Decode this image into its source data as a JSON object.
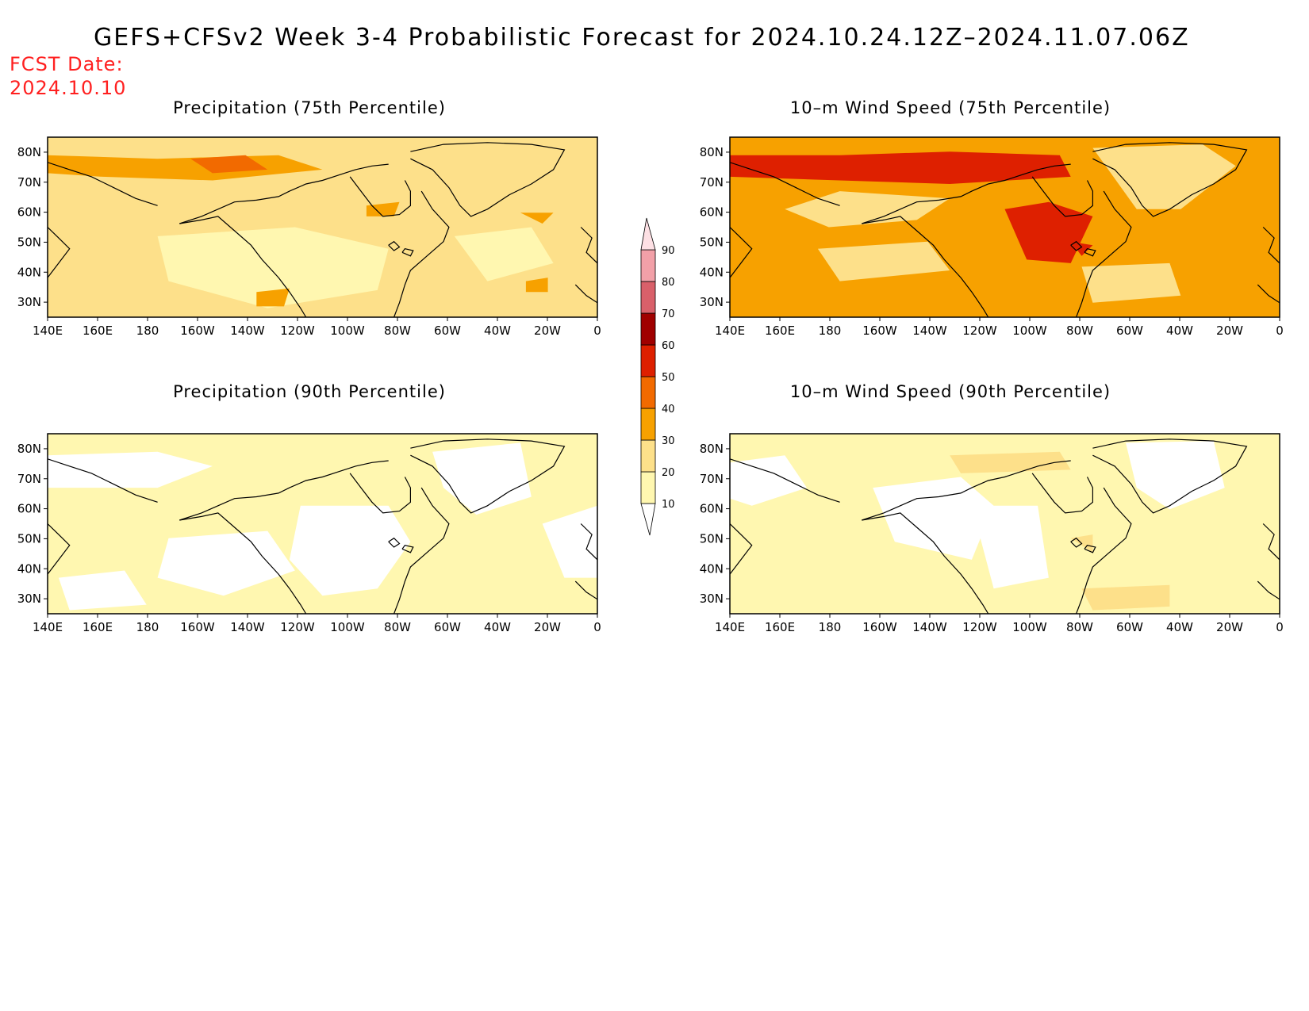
{
  "title": "GEFS+CFSv2 Week 3-4 Probabilistic Forecast for 2024.10.24.12Z–2024.11.07.06Z",
  "fcst_label": "FCST Date:",
  "fcst_date": "2024.10.10",
  "lat_labels": [
    "80N",
    "70N",
    "60N",
    "50N",
    "40N",
    "30N"
  ],
  "lon_labels": [
    "140E",
    "160E",
    "180",
    "160W",
    "140W",
    "120W",
    "100W",
    "80W",
    "60W",
    "40W",
    "20W",
    "0"
  ],
  "colorbar": {
    "levels": [
      "10",
      "20",
      "30",
      "40",
      "50",
      "60",
      "70",
      "80",
      "90"
    ],
    "colors": [
      "#ffffff",
      "#fff7b0",
      "#fde08a",
      "#f7a100",
      "#f26a00",
      "#de2000",
      "#a00000",
      "#d9606a",
      "#f2a0a8",
      "#fde0e4"
    ]
  },
  "panels": [
    {
      "title": "Precipitation (75th Percentile)",
      "base_color": "#fde08a",
      "accent": "#f7a100",
      "hot": "#f26a00"
    },
    {
      "title": "10–m Wind Speed (75th Percentile)",
      "base_color": "#f7a100",
      "accent": "#f26a00",
      "hot": "#de2000"
    },
    {
      "title": "Precipitation (90th Percentile)",
      "base_color": "#fff7b0",
      "accent": "#ffffff",
      "hot": "#fde08a"
    },
    {
      "title": "10–m Wind Speed (90th Percentile)",
      "base_color": "#fff7b0",
      "accent": "#ffffff",
      "hot": "#fde08a"
    }
  ]
}
